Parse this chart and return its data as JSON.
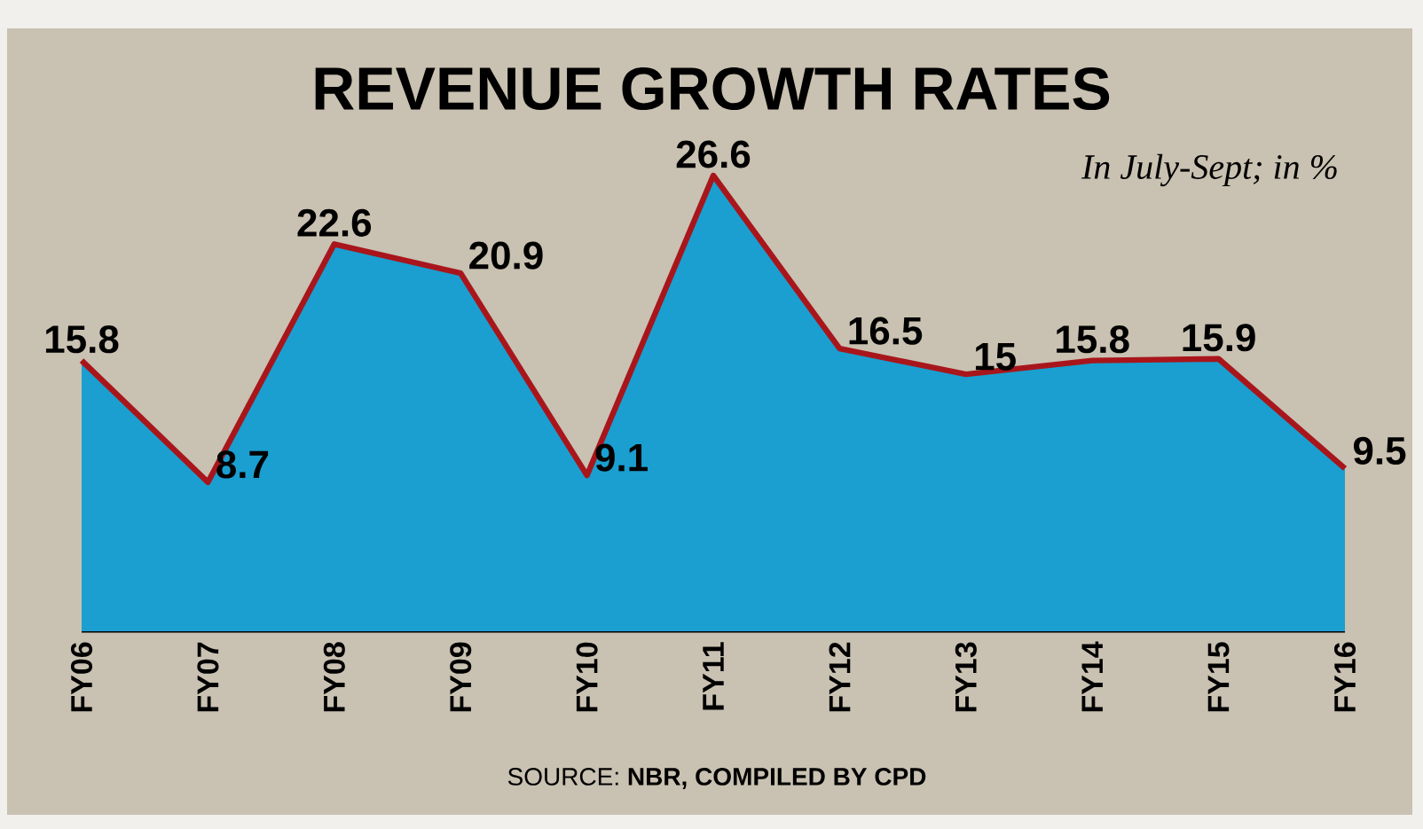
{
  "chart_data": {
    "type": "area",
    "title": "REVENUE GROWTH RATES",
    "subtitle": "In July-Sept; in %",
    "annotations": [
      "SOURCE: **NBR, COMPILED BY CPD**"
    ],
    "categories": [
      "FY06",
      "FY07",
      "FY08",
      "FY09",
      "FY10",
      "FY11",
      "FY12",
      "FY13",
      "FY14",
      "FY15",
      "FY16"
    ],
    "series": [
      {
        "color": "#1a9fd0",
        "values": [
          15.8,
          8.7,
          22.6,
          20.9,
          9.1,
          26.6,
          16.5,
          15,
          15.8,
          15.9,
          9.5
        ]
      },
      {
        "type": "line",
        "color": "#a8161c",
        "values": [
          15.8,
          8.7,
          22.6,
          20.9,
          9.1,
          26.6,
          16.5,
          15,
          15.8,
          15.9,
          9.5
        ],
        "value_labels": [
          "15.8",
          "8.7",
          "22.6",
          "20.9",
          "9.1",
          "26.6",
          "16.5",
          "15",
          "15.8",
          "15.9",
          "9.5"
        ]
      }
    ],
    "marker": "none",
    "line_style": "solid"
  }
}
